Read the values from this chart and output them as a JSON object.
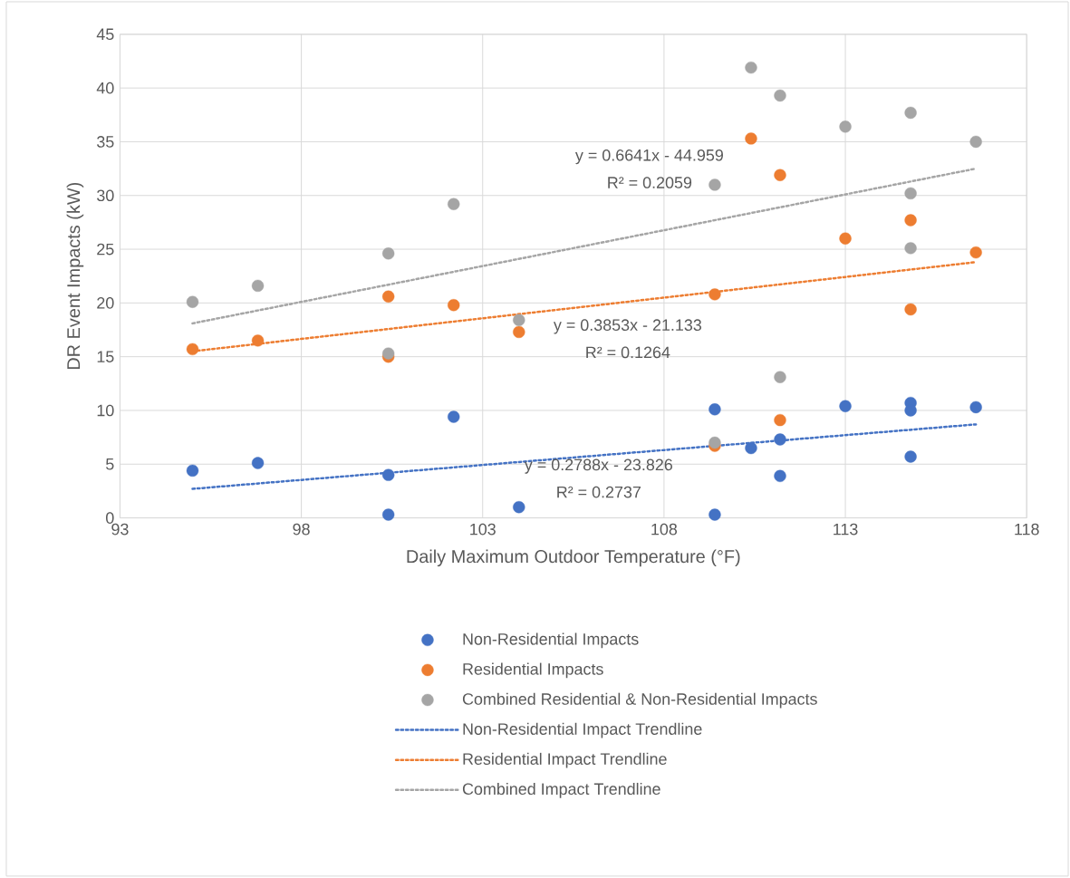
{
  "chart_data": {
    "type": "scatter",
    "xlabel": "Daily Maximum Outdoor Temperature (°F)",
    "ylabel": "DR Event Impacts (kW)",
    "xlim": [
      93,
      118
    ],
    "xticks": [
      93,
      98,
      103,
      108,
      113,
      118
    ],
    "ylim": [
      0,
      45
    ],
    "yticks": [
      0,
      5,
      10,
      15,
      20,
      25,
      30,
      35,
      40,
      45
    ],
    "grid": true,
    "legend": "bottom",
    "series": [
      {
        "name": "Non-Residential Impacts",
        "marker": "circle",
        "color": "#4472c4",
        "x": [
          95,
          96.8,
          100.4,
          100.4,
          102.2,
          104,
          109.4,
          109.4,
          110.4,
          111.2,
          111.2,
          113,
          114.8,
          114.8,
          114.8,
          116.6
        ],
        "values": [
          4.4,
          5.1,
          4.0,
          0.3,
          9.4,
          1.0,
          10.1,
          0.3,
          6.5,
          7.3,
          3.9,
          10.4,
          10.7,
          10.0,
          5.7,
          10.3
        ]
      },
      {
        "name": "Residential Impacts",
        "marker": "circle",
        "color": "#ed7d31",
        "x": [
          95,
          96.8,
          100.4,
          100.4,
          102.2,
          104,
          109.4,
          109.4,
          110.4,
          111.2,
          111.2,
          113,
          114.8,
          114.8,
          116.6
        ],
        "values": [
          15.7,
          16.5,
          20.6,
          15.0,
          19.8,
          17.3,
          20.8,
          6.7,
          35.3,
          31.9,
          9.1,
          26.0,
          27.7,
          19.4,
          24.7
        ]
      },
      {
        "name": "Combined Residential & Non-Residential Impacts",
        "marker": "circle",
        "color": "#a5a5a5",
        "x": [
          95,
          96.8,
          100.4,
          100.4,
          102.2,
          104,
          109.4,
          109.4,
          110.4,
          111.2,
          111.2,
          113,
          114.8,
          114.8,
          114.8,
          116.6
        ],
        "values": [
          20.1,
          21.6,
          24.6,
          15.3,
          29.2,
          18.4,
          31.0,
          7.0,
          41.9,
          39.3,
          13.1,
          36.4,
          37.7,
          30.2,
          25.1,
          35.0
        ]
      },
      {
        "name": "Non-Residential Impact Trendline",
        "type": "line",
        "marker": "none",
        "line_style": "dotted",
        "color": "#4472c4",
        "x": [
          95,
          116.6
        ],
        "values": [
          2.7,
          8.7
        ]
      },
      {
        "name": "Residential Impact Trendline",
        "type": "line",
        "marker": "none",
        "line_style": "dotted",
        "color": "#ed7d31",
        "x": [
          95,
          116.6
        ],
        "values": [
          15.5,
          23.8
        ]
      },
      {
        "name": "Combined Impact Trendline",
        "type": "line",
        "marker": "none",
        "line_style": "dotted",
        "color": "#a5a5a5",
        "x": [
          95,
          116.6
        ],
        "values": [
          18.1,
          32.5
        ]
      }
    ],
    "annotations": [
      "y = 0.6641x - 44.959",
      "R² = 0.2059",
      "y = 0.3853x - 21.133",
      "R² = 0.1264",
      "y = 0.2788x - 23.826",
      "R² = 0.2737"
    ]
  }
}
